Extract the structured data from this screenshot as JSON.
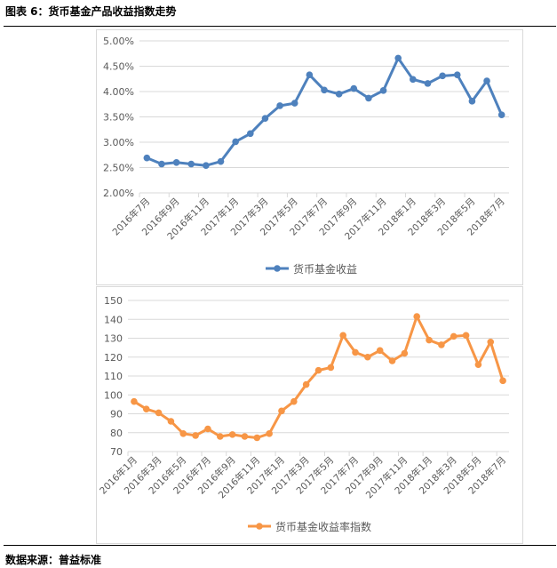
{
  "header": {
    "title": "图表 6：货币基金产品收益指数走势"
  },
  "footer": {
    "source": "数据来源：普益标准"
  },
  "chart_data": [
    {
      "type": "line",
      "title": "",
      "x": [
        "2016年7月",
        "2016年8月",
        "2016年9月",
        "2016年10月",
        "2016年11月",
        "2016年12月",
        "2017年1月",
        "2017年2月",
        "2017年3月",
        "2017年4月",
        "2017年5月",
        "2017年6月",
        "2017年7月",
        "2017年8月",
        "2017年9月",
        "2017年10月",
        "2017年11月",
        "2017年12月",
        "2018年1月",
        "2018年2月",
        "2018年3月",
        "2018年4月",
        "2018年5月",
        "2018年6月",
        "2018年7月"
      ],
      "tick_labels": [
        "2016年7月",
        "2016年9月",
        "2016年11月",
        "2017年1月",
        "2017年3月",
        "2017年5月",
        "2017年7月",
        "2017年9月",
        "2017年11月",
        "2018年1月",
        "2018年3月",
        "2018年5月",
        "2018年7月"
      ],
      "series": [
        {
          "name": "货币基金收益",
          "color": "#4e81bd",
          "values": [
            2.69,
            2.57,
            2.6,
            2.57,
            2.54,
            2.62,
            3.01,
            3.17,
            3.47,
            3.72,
            3.77,
            4.33,
            4.03,
            3.95,
            4.06,
            3.87,
            4.02,
            4.66,
            4.24,
            4.16,
            4.31,
            4.33,
            3.81,
            4.21,
            3.54
          ]
        }
      ],
      "yticks": [
        "2.00%",
        "2.50%",
        "3.00%",
        "3.50%",
        "4.00%",
        "4.50%",
        "5.00%"
      ],
      "ylim": [
        2.0,
        5.0
      ],
      "grid": true,
      "legend": "bottom",
      "xlabel": "",
      "ylabel": ""
    },
    {
      "type": "line",
      "title": "",
      "x": [
        "2016年1月",
        "2016年2月",
        "2016年3月",
        "2016年4月",
        "2016年5月",
        "2016年6月",
        "2016年7月",
        "2016年8月",
        "2016年9月",
        "2016年10月",
        "2016年11月",
        "2016年12月",
        "2017年1月",
        "2017年2月",
        "2017年3月",
        "2017年4月",
        "2017年5月",
        "2017年6月",
        "2017年7月",
        "2017年8月",
        "2017年9月",
        "2017年10月",
        "2017年11月",
        "2017年12月",
        "2018年1月",
        "2018年2月",
        "2018年3月",
        "2018年4月",
        "2018年5月",
        "2018年6月",
        "2018年7月"
      ],
      "tick_labels": [
        "2016年1月",
        "2016年3月",
        "2016年5月",
        "2016年7月",
        "2016年9月",
        "2016年11月",
        "2017年1月",
        "2017年3月",
        "2017年5月",
        "2017年7月",
        "2017年9月",
        "2017年11月",
        "2018年1月",
        "2018年3月",
        "2018年5月",
        "2018年7月"
      ],
      "series": [
        {
          "name": "货币基金收益率指数",
          "color": "#f79646",
          "values": [
            96.5,
            92.5,
            90.5,
            86,
            79.5,
            78.5,
            82,
            78,
            79,
            78,
            77.3,
            79.5,
            91.5,
            96.5,
            105.5,
            113,
            114.5,
            131.5,
            122.5,
            120,
            123.5,
            118,
            122,
            141.5,
            129,
            126.5,
            131,
            131.5,
            116,
            128,
            107.5
          ]
        }
      ],
      "yticks": [
        "70",
        "80",
        "90",
        "100",
        "110",
        "120",
        "130",
        "140",
        "150"
      ],
      "ylim": [
        70,
        150
      ],
      "grid": true,
      "legend": "bottom",
      "xlabel": "",
      "ylabel": ""
    }
  ]
}
